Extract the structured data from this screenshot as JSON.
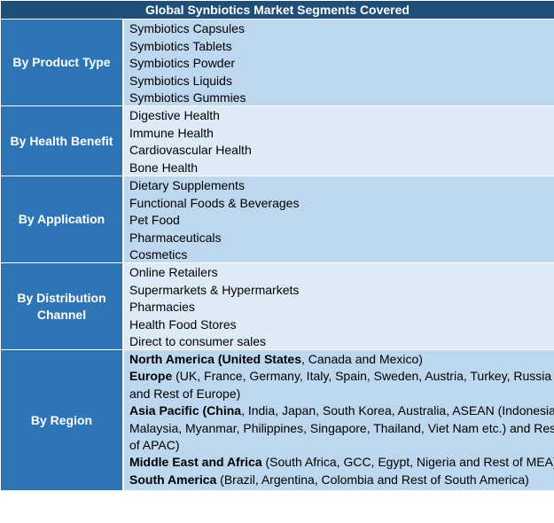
{
  "title": "Global Synbiotics Market Segments Covered",
  "segments": [
    {
      "label": "By Product Type",
      "items": [
        "Symbiotics Capsules",
        "Symbiotics Tablets",
        "Symbiotics Powder",
        "Symbiotics Liquids",
        "Symbiotics Gummies"
      ]
    },
    {
      "label": "By Health Benefit",
      "items": [
        "Digestive Health",
        "Immune Health",
        "Cardiovascular Health",
        "Bone Health"
      ]
    },
    {
      "label": "By Application",
      "items": [
        "Dietary Supplements",
        "Functional Foods & Beverages",
        "Pet Food",
        "Pharmaceuticals",
        "Cosmetics"
      ]
    },
    {
      "label_line1": "By Distribution",
      "label_line2": "Channel",
      "items": [
        "Online Retailers",
        "Supermarkets & Hypermarkets",
        "Pharmacies",
        "Health Food Stores",
        "Direct to consumer sales"
      ]
    },
    {
      "label": "By Region",
      "regions": {
        "north_america": {
          "name": "North America",
          "open": " (",
          "country_bold": "United States",
          "rest": ", Canada and Mexico)"
        },
        "europe": {
          "name": "Europe",
          "line1": " (UK, France, Germany, Italy, Spain, Sweden, Austria, Turkey, Russia",
          "line2": "and Rest of Europe)"
        },
        "asia_pacific": {
          "name": "Asia Pacific",
          "open": " (",
          "country_bold": "China",
          "line1": ", India, Japan, South Korea, Australia, ASEAN (Indonesia,",
          "line2": "Malaysia, Myanmar, Philippines, Singapore, Thailand, Viet Nam etc.) and Rest",
          "line3": "of APAC)"
        },
        "mea": {
          "name": "Middle East and Africa",
          "rest": " (South Africa, GCC, Egypt, Nigeria and Rest of MEA)"
        },
        "south_america": {
          "name": "South America",
          "rest": " (Brazil, Argentina, Colombia and Rest of South America)"
        }
      }
    }
  ]
}
